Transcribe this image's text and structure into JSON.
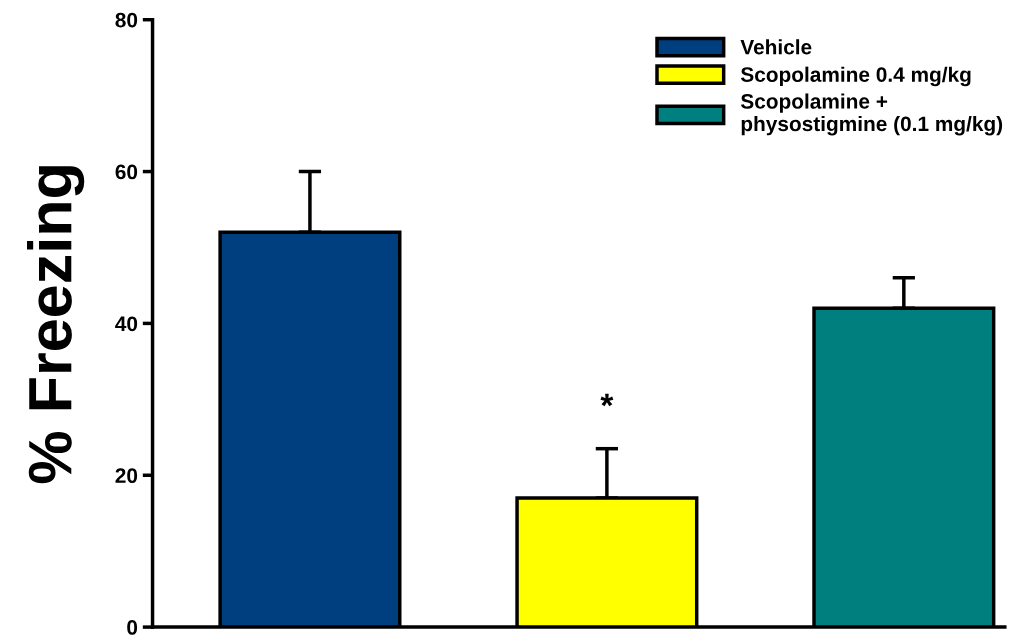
{
  "chart_data": {
    "type": "bar",
    "ylabel": "% Freezing",
    "categories": [
      null,
      null,
      null
    ],
    "series": [
      {
        "name": "Vehicle",
        "color": "#003f7f",
        "values": [
          52,
          null,
          null
        ],
        "errors": [
          8,
          null,
          null
        ]
      },
      {
        "name": "Scopolamine 0.4 mg/kg",
        "color": "#ffff00",
        "values": [
          null,
          17,
          null
        ],
        "errors": [
          null,
          6.5,
          null
        ]
      },
      {
        "name": "Scopolamine +\nphysostigmine (0.1 mg/kg)",
        "color": "#007f7f",
        "values": [
          null,
          null,
          42
        ],
        "errors": [
          null,
          null,
          4
        ]
      }
    ],
    "ylim": [
      0,
      80
    ],
    "yticks": [
      0,
      20,
      40,
      60,
      80
    ],
    "grid": false,
    "legend": "top right",
    "annotations": [
      "*"
    ]
  }
}
